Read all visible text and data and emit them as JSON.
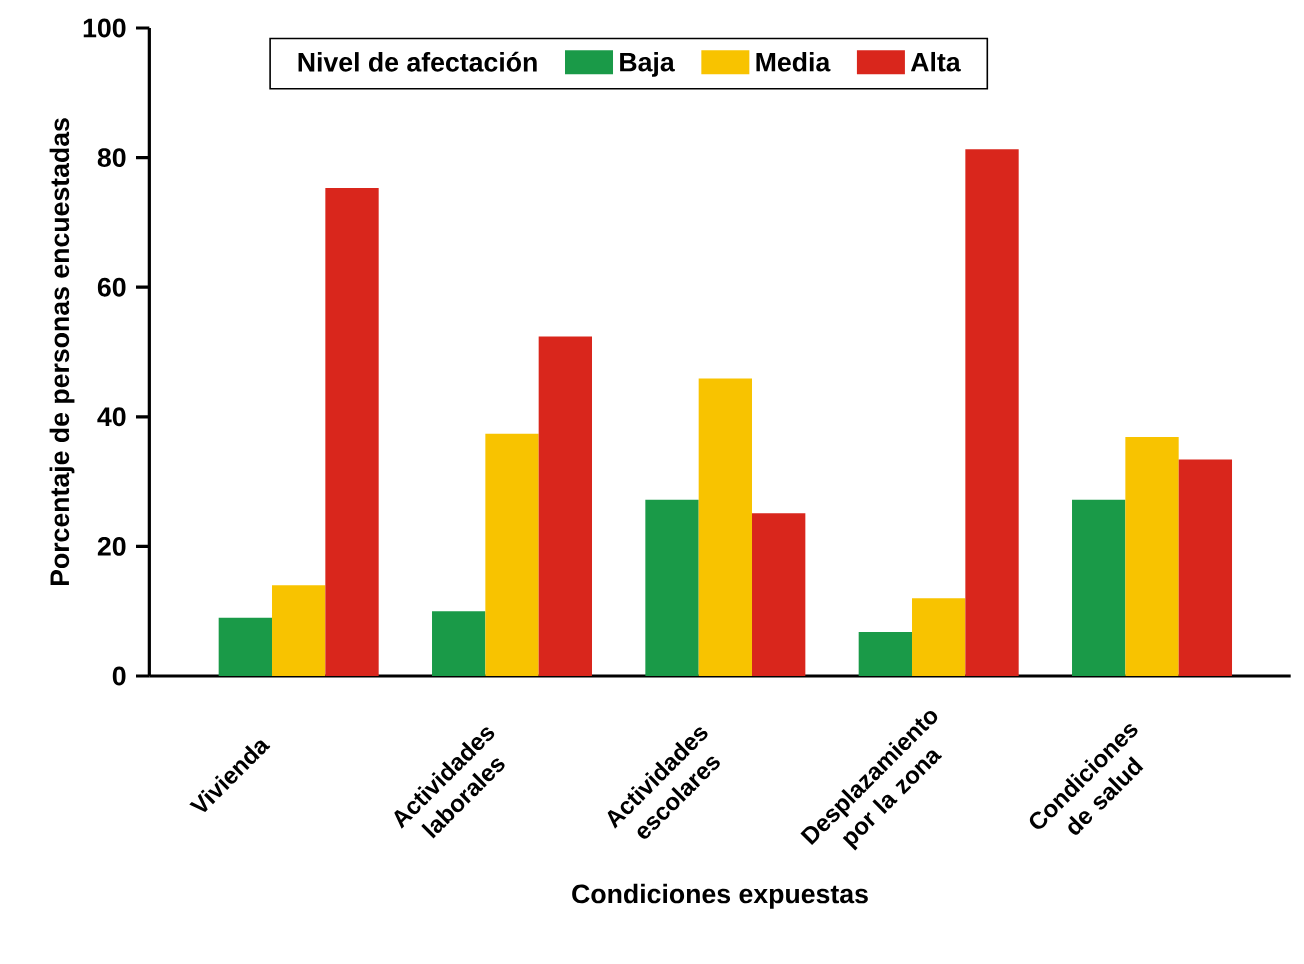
{
  "chart_data": {
    "type": "bar",
    "xlabel": "Condiciones expuestas",
    "ylabel": "Porcentaje de personas encuestadas",
    "legend_title": "Nivel de afectación",
    "categories": [
      "Vivienda",
      "Actividades laborales",
      "Actividades escolares",
      "Desplazamiento por la zona",
      "Condiciones de salud"
    ],
    "series": [
      {
        "name": "Baja",
        "color": "#1a9a48",
        "values": [
          9,
          10,
          27.2,
          6.8,
          27.2
        ]
      },
      {
        "name": "Media",
        "color": "#f8c300",
        "values": [
          14,
          37.4,
          45.9,
          12,
          36.9
        ]
      },
      {
        "name": "Alta",
        "color": "#d9261c",
        "values": [
          75.3,
          52.4,
          25.1,
          81.3,
          33.4
        ]
      }
    ],
    "ylim": [
      0,
      100
    ],
    "yticks": [
      0,
      20,
      40,
      60,
      80,
      100
    ],
    "grid": false,
    "legend": "top"
  }
}
